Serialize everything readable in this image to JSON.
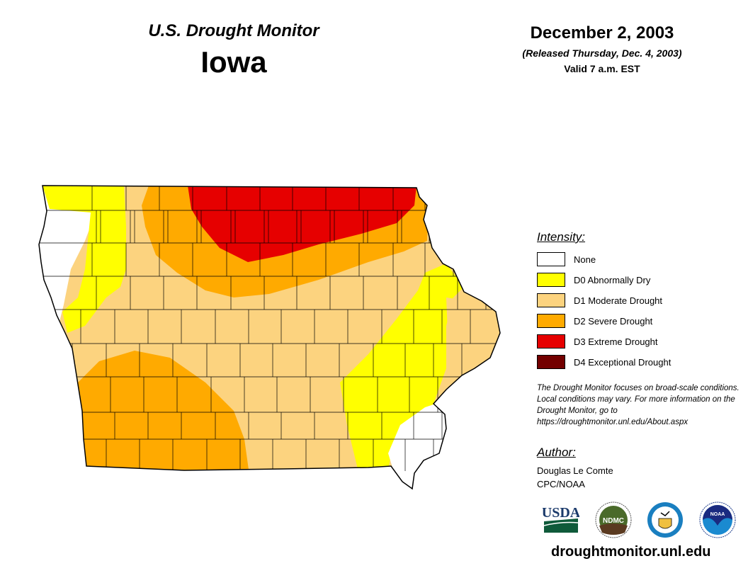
{
  "header": {
    "subtitle": "U.S. Drought Monitor",
    "state": "Iowa",
    "date": "December 2, 2003",
    "released": "(Released Thursday, Dec. 4, 2003)",
    "valid": "Valid 7 a.m. EST"
  },
  "legend": {
    "title": "Intensity:",
    "items": [
      {
        "label": "None",
        "color": "#FFFFFF"
      },
      {
        "label": "D0 Abnormally Dry",
        "color": "#FFFF00"
      },
      {
        "label": "D1 Moderate Drought",
        "color": "#FCD37F"
      },
      {
        "label": "D2 Severe Drought",
        "color": "#FFAA00"
      },
      {
        "label": "D3 Extreme Drought",
        "color": "#E60000"
      },
      {
        "label": "D4 Exceptional Drought",
        "color": "#730000"
      }
    ]
  },
  "note": "The Drought Monitor focuses on broad-scale conditions. Local conditions may vary. For more information on the Drought Monitor, go to https://droughtmonitor.unl.edu/About.aspx",
  "author": {
    "title": "Author:",
    "name": "Douglas Le Comte",
    "org": "CPC/NOAA"
  },
  "logos": {
    "usda": "USDA",
    "ndmc": "NDMC",
    "commerce": "Dept. of Commerce",
    "noaa": "NOAA"
  },
  "footer": {
    "url": "droughtmonitor.unl.edu"
  }
}
